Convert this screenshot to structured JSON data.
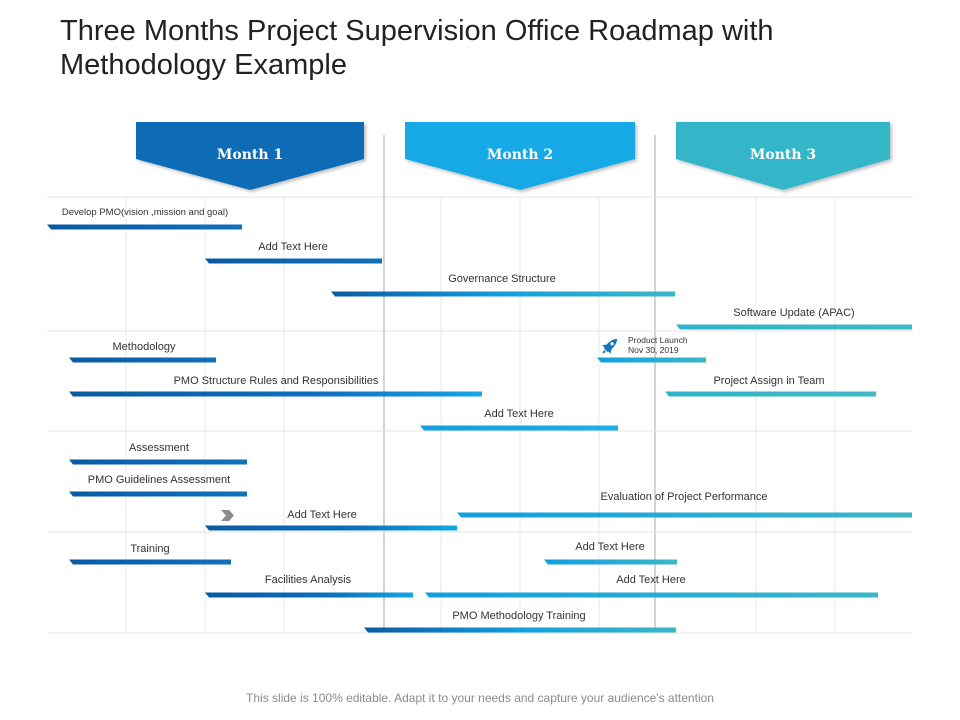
{
  "title": "Three Months Project Supervision Office  Roadmap with Methodology Example",
  "footer": "This slide is 100% editable. Adapt it to your needs and capture your audience's attention",
  "colors": {
    "month1": "#0b6cb5",
    "month2": "#12a9e6",
    "month3": "#35b5c8",
    "bar_dark": "#0b5ea8",
    "bar_mid": "#129fe0",
    "bar_teal": "#3ab7c7",
    "grid": "#e6e6e6",
    "divider": "#c8c8c8",
    "marker": "#8c8c8c"
  },
  "months": [
    {
      "label": "Month 1",
      "color": "#0b6cb5"
    },
    {
      "label": "Month 2",
      "color": "#12a9e6"
    },
    {
      "label": "Month 3",
      "color": "#35b5c8"
    }
  ],
  "tasks": [
    {
      "label": "Develop PMO(vision ,mission  and  goal)"
    },
    {
      "label": "Add Text Here"
    },
    {
      "label": "Governance Structure"
    },
    {
      "label": "Software Update (APAC)"
    },
    {
      "label": "Methodology"
    },
    {
      "label": "Product Launch"
    },
    {
      "label": "PMO Structure Rules and Responsibilities"
    },
    {
      "label": "Project Assign in Team"
    },
    {
      "label": "Add Text Here"
    },
    {
      "label": "Assessment"
    },
    {
      "label": "PMO Guidelines Assessment"
    },
    {
      "label": "Evaluation of Project Performance"
    },
    {
      "label": "Add Text Here"
    },
    {
      "label": "Training"
    },
    {
      "label": "Add Text Here"
    },
    {
      "label": "Facilities Analysis"
    },
    {
      "label": "Add Text Here"
    },
    {
      "label": "PMO Methodology Training"
    }
  ],
  "milestone": {
    "label": "Product Launch",
    "date": "Nov 30, 2019",
    "icon": "rocket-icon"
  },
  "arrow_marker_icon": "chevron-right-icon"
}
